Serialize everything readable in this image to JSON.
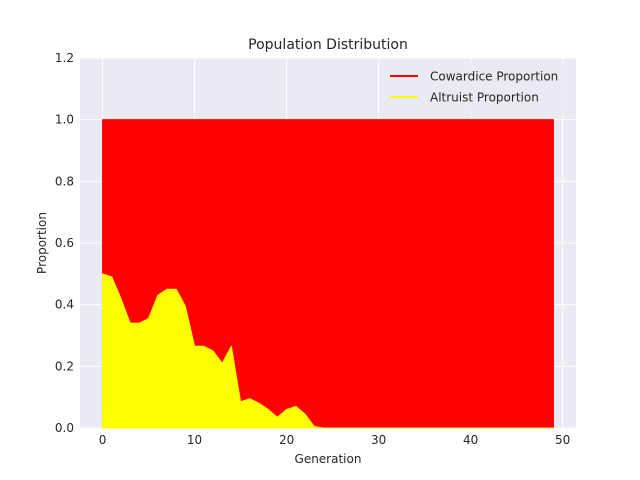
{
  "chart_data": {
    "type": "area",
    "title": "Population Distribution",
    "xlabel": "Generation",
    "ylabel": "Proportion",
    "xlim": [
      -2.45,
      51.45
    ],
    "ylim": [
      0,
      1.2
    ],
    "xticks": [
      0,
      10,
      20,
      30,
      40,
      50
    ],
    "yticks": [
      0.0,
      0.2,
      0.4,
      0.6,
      0.8,
      1.0,
      1.2
    ],
    "grid": true,
    "legend_position": "top-right",
    "x": [
      0,
      1,
      2,
      3,
      4,
      5,
      6,
      7,
      8,
      9,
      10,
      11,
      12,
      13,
      14,
      15,
      16,
      17,
      18,
      19,
      20,
      21,
      22,
      23,
      24,
      25,
      26,
      27,
      28,
      29,
      30,
      31,
      32,
      33,
      34,
      35,
      36,
      37,
      38,
      39,
      40,
      41,
      42,
      43,
      44,
      45,
      46,
      47,
      48,
      49
    ],
    "series": [
      {
        "name": "Cowardice Proportion",
        "color": "#ff0000",
        "values": [
          1,
          1,
          1,
          1,
          1,
          1,
          1,
          1,
          1,
          1,
          1,
          1,
          1,
          1,
          1,
          1,
          1,
          1,
          1,
          1,
          1,
          1,
          1,
          1,
          1,
          1,
          1,
          1,
          1,
          1,
          1,
          1,
          1,
          1,
          1,
          1,
          1,
          1,
          1,
          1,
          1,
          1,
          1,
          1,
          1,
          1,
          1,
          1,
          1,
          1
        ]
      },
      {
        "name": "Altruist Proportion",
        "color": "#ffff00",
        "values": [
          0.5,
          0.49,
          0.42,
          0.34,
          0.34,
          0.355,
          0.43,
          0.45,
          0.45,
          0.395,
          0.265,
          0.265,
          0.25,
          0.21,
          0.265,
          0.085,
          0.095,
          0.08,
          0.06,
          0.035,
          0.06,
          0.07,
          0.045,
          0.005,
          0,
          0,
          0,
          0,
          0,
          0,
          0,
          0,
          0,
          0,
          0,
          0,
          0,
          0,
          0,
          0,
          0,
          0,
          0,
          0,
          0,
          0,
          0,
          0,
          0,
          0
        ]
      }
    ]
  },
  "colors": {
    "axes_background": "#eaeaf2",
    "grid": "#ffffff",
    "text": "#262626"
  }
}
